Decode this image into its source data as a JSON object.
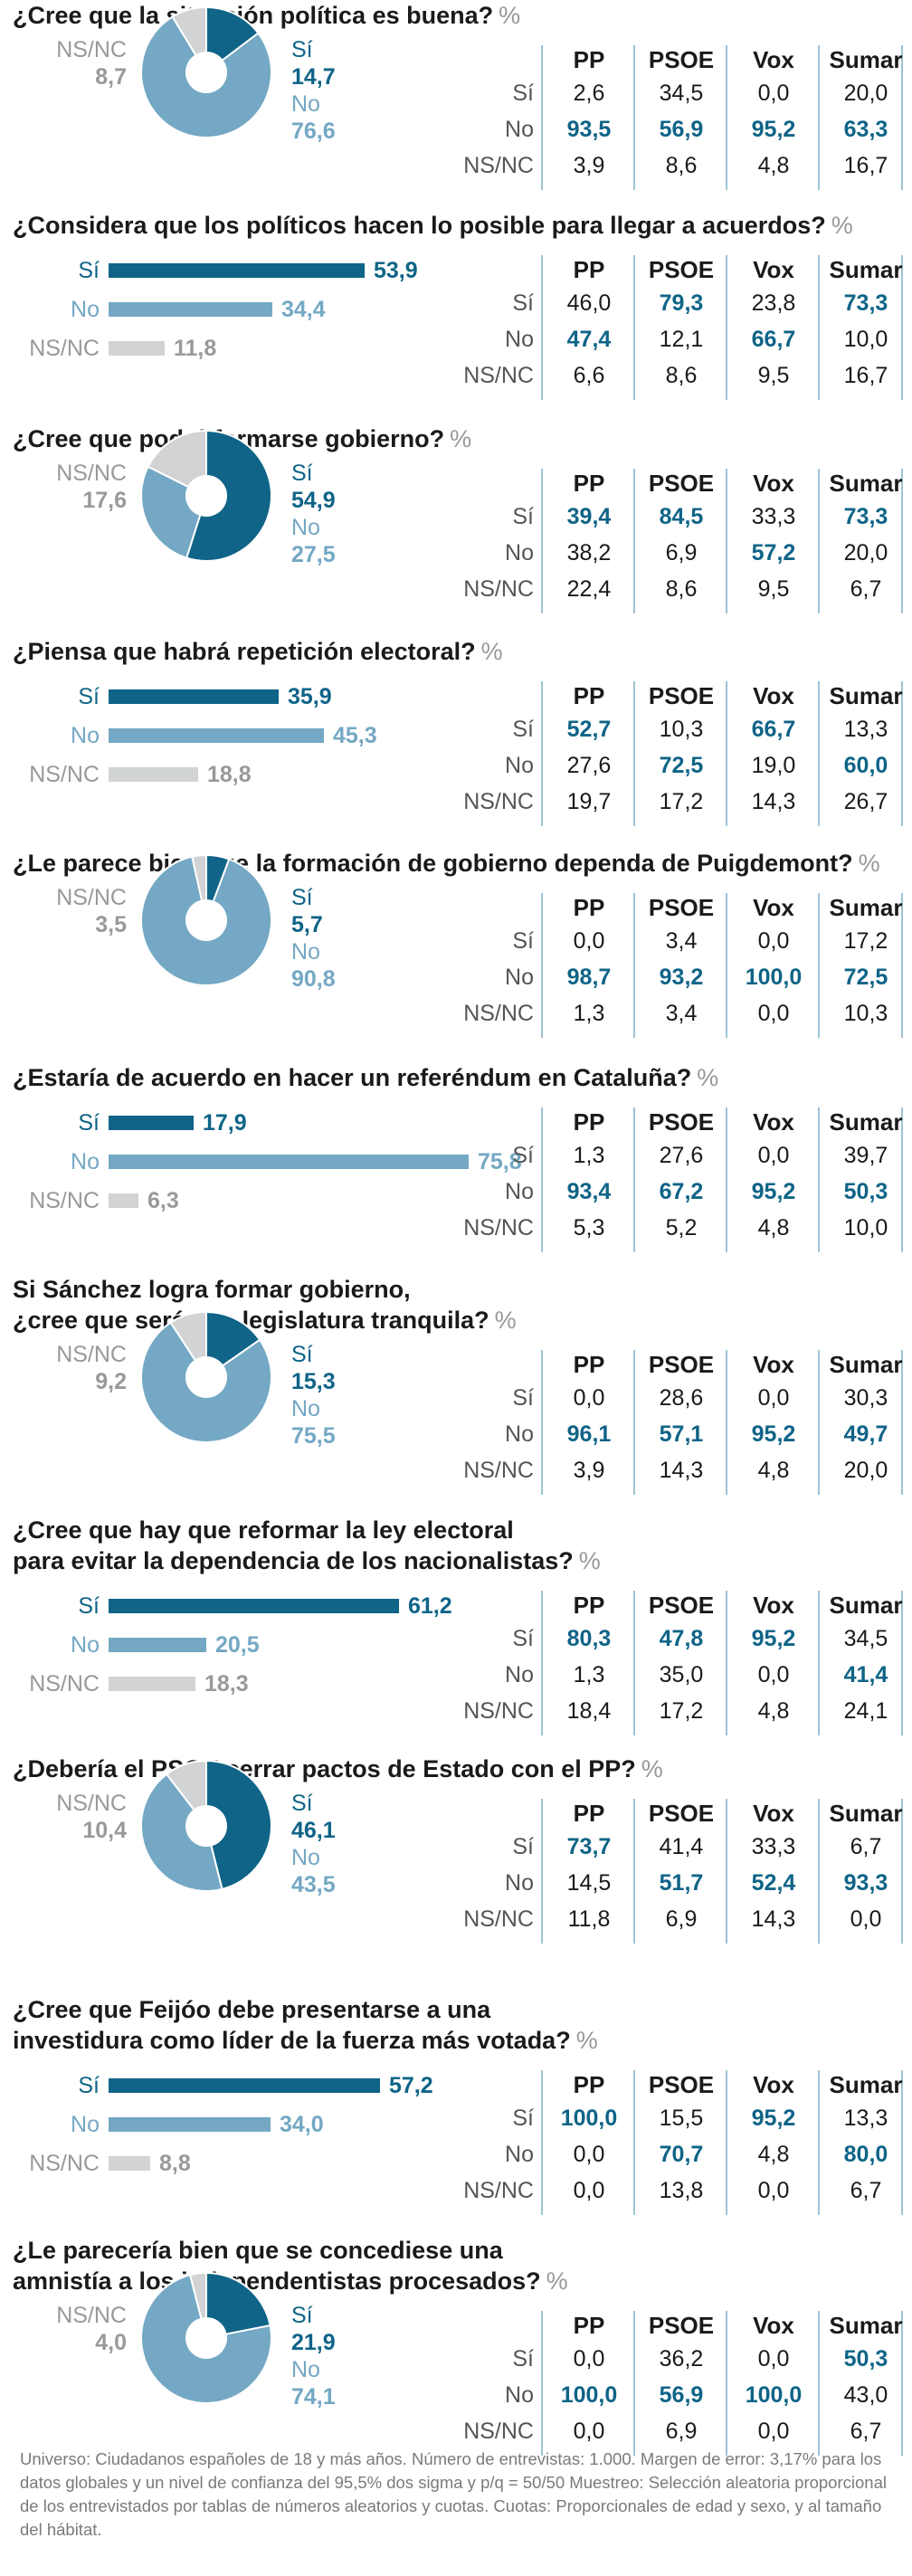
{
  "colors": {
    "si": "#0f6487",
    "no": "#74a8c4",
    "nsnc": "#d1d3d4",
    "text_nsnc": "#999999"
  },
  "unit": "%",
  "table_headers": [
    "PP",
    "PSOE",
    "Vox",
    "Sumar"
  ],
  "row_labels": [
    "Sí",
    "No",
    "NS/NC"
  ],
  "answer_labels": {
    "si": "Sí",
    "no": "No",
    "nsnc": "NS/NC"
  },
  "footer": "Universo: Ciudadanos españoles de 18 y más años. Número de entrevistas: 1.000. Margen de error: 3,17% para los datos globales y un nivel de confianza del 95,5% dos sigma y p/q = 50/50 Muestreo: Selección aleatoria proporcional de los entrevistados por tablas de números aleatorios y cuotas. Cuotas: Proporcionales de edad y sexo, y al tamaño del hábitat.",
  "chart_data": [
    {
      "type": "pie",
      "title": [
        "¿Cree que la situación política es buena?"
      ],
      "labels": [
        "Sí",
        "No",
        "NS/NC"
      ],
      "values": [
        14.7,
        76.6,
        8.7
      ],
      "display": [
        "14,7",
        "76,6",
        "8,7"
      ],
      "table": [
        [
          "2,6",
          "34,5",
          "0,0",
          "20,0"
        ],
        [
          "93,5",
          "56,9",
          "95,2",
          "63,3"
        ],
        [
          "3,9",
          "8,6",
          "4,8",
          "16,7"
        ]
      ],
      "highlight": [
        1
      ]
    },
    {
      "type": "bar",
      "title": [
        "¿Considera que los políticos hacen lo posible para llegar a acuerdos?"
      ],
      "labels": [
        "Sí",
        "No",
        "NS/NC"
      ],
      "values": [
        53.9,
        34.4,
        11.8
      ],
      "display": [
        "53,9",
        "34,4",
        "11,8"
      ],
      "table": [
        [
          "46,0",
          "79,3",
          "23,8",
          "73,3"
        ],
        [
          "47,4",
          "12,1",
          "66,7",
          "10,0"
        ],
        [
          "6,6",
          "8,6",
          "9,5",
          "16,7"
        ]
      ],
      "highlight": [
        0,
        1,
        0,
        0
      ]
    },
    {
      "type": "pie",
      "title": [
        "¿Cree que podrá formarse gobierno?"
      ],
      "labels": [
        "Sí",
        "No",
        "NS/NC"
      ],
      "values": [
        54.9,
        27.5,
        17.6
      ],
      "display": [
        "54,9",
        "27,5",
        "17,6"
      ],
      "table": [
        [
          "39,4",
          "84,5",
          "33,3",
          "73,3"
        ],
        [
          "38,2",
          "6,9",
          "57,2",
          "20,0"
        ],
        [
          "22,4",
          "8,6",
          "9,5",
          "6,7"
        ]
      ],
      "highlight": [
        0,
        0,
        1,
        0
      ]
    },
    {
      "type": "bar",
      "title": [
        "¿Piensa que habrá repetición electoral?"
      ],
      "labels": [
        "Sí",
        "No",
        "NS/NC"
      ],
      "values": [
        35.9,
        45.3,
        18.8
      ],
      "display": [
        "35,9",
        "45,3",
        "18,8"
      ],
      "table": [
        [
          "52,7",
          "10,3",
          "66,7",
          "13,3"
        ],
        [
          "27,6",
          "72,5",
          "19,0",
          "60,0"
        ],
        [
          "19,7",
          "17,2",
          "14,3",
          "26,7"
        ]
      ],
      "highlight": [
        0,
        1,
        0,
        1
      ]
    },
    {
      "type": "pie",
      "title": [
        "¿Le parece bien que la formación de gobierno dependa de Puigdemont?"
      ],
      "labels": [
        "Sí",
        "No",
        "NS/NC"
      ],
      "values": [
        5.7,
        90.8,
        3.5
      ],
      "display": [
        "5,7",
        "90,8",
        "3,5"
      ],
      "table": [
        [
          "0,0",
          "3,4",
          "0,0",
          "17,2"
        ],
        [
          "98,7",
          "93,2",
          "100,0",
          "72,5"
        ],
        [
          "1,3",
          "3,4",
          "0,0",
          "10,3"
        ]
      ],
      "highlight": [
        1
      ]
    },
    {
      "type": "bar",
      "title": [
        "¿Estaría de acuerdo en hacer un referéndum en Cataluña?"
      ],
      "labels": [
        "Sí",
        "No",
        "NS/NC"
      ],
      "values": [
        17.9,
        75.8,
        6.3
      ],
      "display": [
        "17,9",
        "75,8",
        "6,3"
      ],
      "table": [
        [
          "1,3",
          "27,6",
          "0,0",
          "39,7"
        ],
        [
          "93,4",
          "67,2",
          "95,2",
          "50,3"
        ],
        [
          "5,3",
          "5,2",
          "4,8",
          "10,0"
        ]
      ],
      "highlight": [
        1
      ]
    },
    {
      "type": "pie",
      "title": [
        "Si Sánchez logra formar gobierno,",
        "¿cree que será una legislatura tranquila?"
      ],
      "labels": [
        "Sí",
        "No",
        "NS/NC"
      ],
      "values": [
        15.3,
        75.5,
        9.2
      ],
      "display": [
        "15,3",
        "75,5",
        "9,2"
      ],
      "table": [
        [
          "0,0",
          "28,6",
          "0,0",
          "30,3"
        ],
        [
          "96,1",
          "57,1",
          "95,2",
          "49,7"
        ],
        [
          "3,9",
          "14,3",
          "4,8",
          "20,0"
        ]
      ],
      "highlight": [
        1
      ]
    },
    {
      "type": "bar",
      "title": [
        "¿Cree que hay que reformar la ley electoral",
        "para evitar la dependencia de los nacionalistas?"
      ],
      "labels": [
        "Sí",
        "No",
        "NS/NC"
      ],
      "values": [
        61.2,
        20.5,
        18.3
      ],
      "display": [
        "61,2",
        "20,5",
        "18,3"
      ],
      "table": [
        [
          "80,3",
          "47,8",
          "95,2",
          "34,5"
        ],
        [
          "1,3",
          "35,0",
          "0,0",
          "41,4"
        ],
        [
          "18,4",
          "17,2",
          "4,8",
          "24,1"
        ]
      ],
      "highlight": [
        0,
        0,
        0,
        1
      ]
    },
    {
      "type": "pie",
      "title": [
        "¿Debería el PSOE cerrar pactos de Estado con el PP?"
      ],
      "labels": [
        "Sí",
        "No",
        "NS/NC"
      ],
      "values": [
        46.1,
        43.5,
        10.4
      ],
      "display": [
        "46,1",
        "43,5",
        "10,4"
      ],
      "table": [
        [
          "73,7",
          "41,4",
          "33,3",
          "6,7"
        ],
        [
          "14,5",
          "51,7",
          "52,4",
          "93,3"
        ],
        [
          "11,8",
          "6,9",
          "14,3",
          "0,0"
        ]
      ],
      "highlight": [
        0,
        1,
        1,
        1
      ]
    },
    {
      "type": "bar",
      "title": [
        "¿Cree que Feijóo debe presentarse a una",
        "investidura como líder de la fuerza más votada?"
      ],
      "labels": [
        "Sí",
        "No",
        "NS/NC"
      ],
      "values": [
        57.2,
        34.0,
        8.8
      ],
      "display": [
        "57,2",
        "34,0",
        "8,8"
      ],
      "table": [
        [
          "100,0",
          "15,5",
          "95,2",
          "13,3"
        ],
        [
          "0,0",
          "70,7",
          "4,8",
          "80,0"
        ],
        [
          "0,0",
          "13,8",
          "0,0",
          "6,7"
        ]
      ],
      "highlight": [
        0,
        1,
        0,
        1
      ]
    },
    {
      "type": "pie",
      "title": [
        "¿Le parecería bien que se concediese una",
        "amnistía a los independentistas procesados?"
      ],
      "labels": [
        "Sí",
        "No",
        "NS/NC"
      ],
      "values": [
        21.9,
        74.1,
        4.0
      ],
      "display": [
        "21,9",
        "74,1",
        "4,0"
      ],
      "table": [
        [
          "0,0",
          "36,2",
          "0,0",
          "50,3"
        ],
        [
          "100,0",
          "56,9",
          "100,0",
          "43,0"
        ],
        [
          "0,0",
          "6,9",
          "0,0",
          "6,7"
        ]
      ],
      "highlight": [
        1,
        1,
        1,
        0
      ]
    }
  ]
}
